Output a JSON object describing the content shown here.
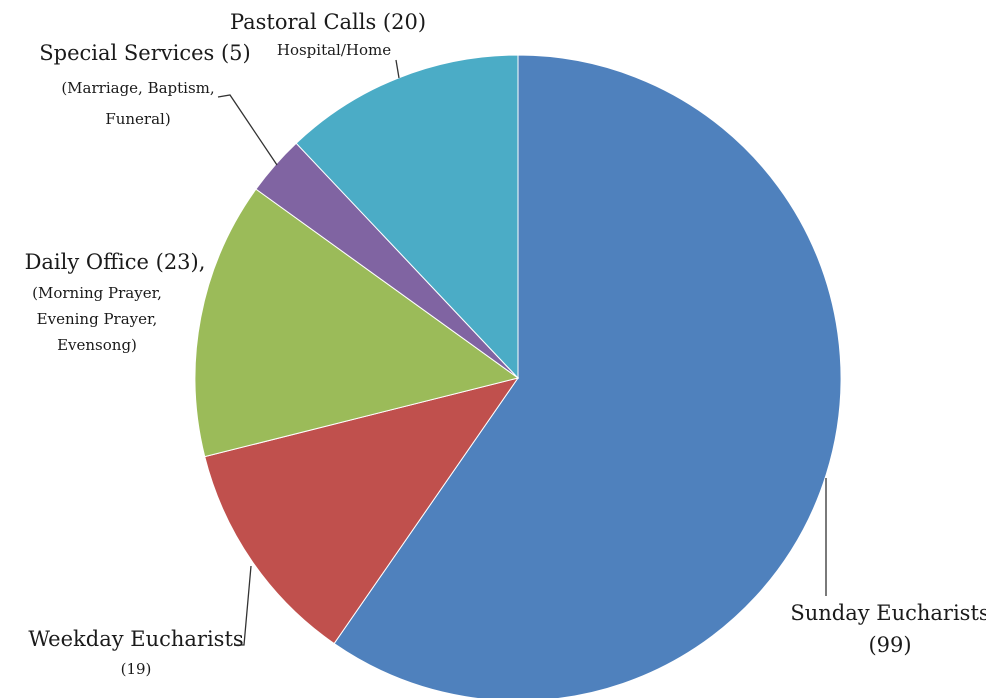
{
  "chart_data": {
    "type": "pie",
    "slices": [
      {
        "key": "sunday",
        "label": "Sunday Eucharists",
        "count_label": "(99)",
        "details": [],
        "value": 99,
        "color": "#4F81BD"
      },
      {
        "key": "weekday",
        "label": "Weekday Eucharists",
        "count_label": "(19)",
        "details": [],
        "value": 19,
        "color": "#C0504D"
      },
      {
        "key": "daily",
        "label": "Daily Office (23),",
        "count_label": "",
        "details": [
          "(Morning Prayer,",
          "Evening Prayer,",
          "Evensong)"
        ],
        "value": 23,
        "color": "#9BBB59"
      },
      {
        "key": "special",
        "label": "Special Services (5)",
        "count_label": "",
        "details": [
          "(Marriage, Baptism,",
          "Funeral)"
        ],
        "value": 5,
        "color": "#8064A2"
      },
      {
        "key": "pastoral",
        "label": "Pastoral Calls (20)",
        "count_label": "",
        "details": [
          "Hospital/Home"
        ],
        "value": 20,
        "color": "#4BACC6"
      }
    ],
    "start_angle_deg": 0,
    "direction": "clockwise",
    "legend": "none",
    "data_labels": "outside with leader lines"
  }
}
